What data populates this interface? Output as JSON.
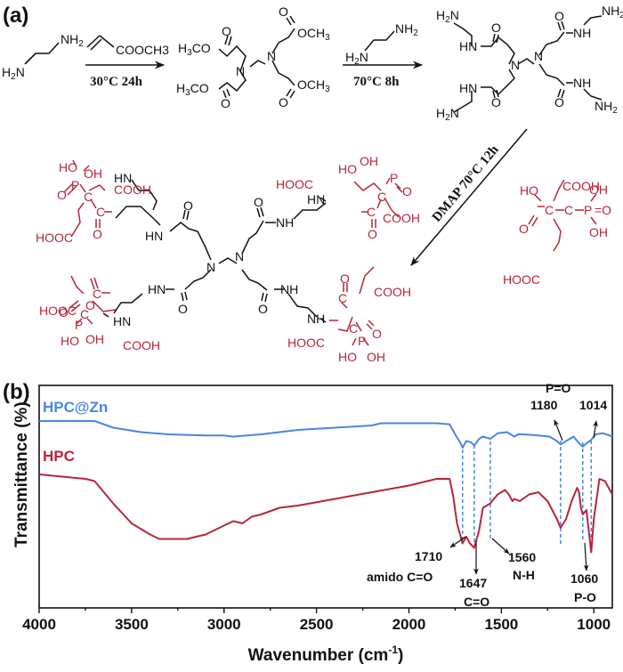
{
  "panels": {
    "a": {
      "label": "(a)"
    },
    "b": {
      "label": "(b)"
    }
  },
  "colors": {
    "black": "#111111",
    "red": "#b5263a",
    "blue": "#4a86e0",
    "dash": "#4a86e0"
  },
  "scheme": {
    "reactant_1": {
      "name": "ethylenediamine",
      "nh2_top": "NH2",
      "h2n_bottom": "H2N"
    },
    "reagent_1": {
      "label": "COOCH3",
      "conditions": "30°C 24h"
    },
    "intermediate_1": {
      "groups": [
        "H3CO",
        "OCH3",
        "H3CO",
        "OCH3"
      ],
      "core": "N",
      "carbonyl": "O"
    },
    "reagent_2": {
      "nh2": "NH2",
      "h2n": "H2N",
      "conditions": "70°C 8h"
    },
    "intermediate_2": {
      "amines": [
        "H2N",
        "NH2",
        "H2N",
        "NH2"
      ],
      "amides": [
        "HN",
        "NH",
        "HN",
        "NH"
      ],
      "core": "N",
      "carbonyl": "O"
    },
    "reagent_3": {
      "conditions": "DMAP 70°C 12h",
      "groups": {
        "cooh": "COOH",
        "ho": "HO",
        "oh": "OH",
        "c": "C",
        "p": "P",
        "o": "O",
        "hooc": "HOOC"
      }
    },
    "product": {
      "arm_labels": {
        "hooc": "HOOC",
        "cooh": "COOH",
        "ho": "HO",
        "oh": "OH",
        "p": "P",
        "c": "C",
        "o": "O",
        "hn": "HN",
        "nh": "NH",
        "n": "N"
      }
    }
  },
  "chart_data": {
    "type": "line",
    "title": "",
    "xlabel": "Wavenumber (cm-1)",
    "xlabel_main": "Wavenumber (cm",
    "xlabel_sup": "-1",
    "xlabel_close": ")",
    "ylabel": "Transmittance (%)",
    "xlim": [
      4000,
      900
    ],
    "x_reversed": true,
    "xticks": [
      4000,
      3500,
      3000,
      2500,
      2000,
      1500,
      1000
    ],
    "xtick_labels": [
      "4000",
      "3500",
      "3000",
      "2500",
      "2000",
      "1500",
      "1000"
    ],
    "yticks_shown": false,
    "grid": false,
    "series": [
      {
        "name": "HPC@Zn",
        "color": "#4a86e0",
        "x": [
          4000,
          3700,
          3600,
          3450,
          3300,
          3100,
          3000,
          2950,
          2800,
          2600,
          2400,
          2200,
          2150,
          2000,
          1850,
          1780,
          1750,
          1720,
          1710,
          1690,
          1665,
          1647,
          1620,
          1600,
          1560,
          1520,
          1470,
          1430,
          1410,
          1380,
          1300,
          1240,
          1200,
          1180,
          1150,
          1110,
          1080,
          1060,
          1040,
          1014,
          990,
          950,
          900
        ],
        "y": [
          84,
          84,
          81,
          79,
          78,
          77.5,
          77.5,
          77,
          78,
          80,
          81,
          82,
          83,
          83,
          83,
          82.5,
          78,
          74,
          72,
          75,
          74.5,
          73,
          76,
          77,
          76,
          78.5,
          79,
          77,
          78,
          78,
          77.5,
          77,
          75,
          73.5,
          75,
          77,
          74,
          72.5,
          74,
          75.5,
          78,
          78.5,
          77
        ]
      },
      {
        "name": "HPC",
        "color": "#b5263a",
        "x": [
          4000,
          3750,
          3700,
          3600,
          3500,
          3400,
          3350,
          3300,
          3200,
          3100,
          3000,
          2950,
          2900,
          2850,
          2800,
          2700,
          2600,
          2400,
          2200,
          2000,
          1850,
          1780,
          1760,
          1740,
          1710,
          1690,
          1670,
          1647,
          1620,
          1600,
          1560,
          1520,
          1480,
          1460,
          1440,
          1430,
          1400,
          1350,
          1300,
          1250,
          1200,
          1180,
          1150,
          1120,
          1090,
          1080,
          1070,
          1060,
          1040,
          1014,
          1000,
          970,
          940,
          900
        ],
        "y": [
          60,
          58,
          57,
          47,
          38,
          33,
          31,
          31,
          31,
          33,
          37,
          39,
          38,
          41,
          42,
          45,
          46,
          49,
          52,
          55,
          58,
          58,
          50,
          38,
          29,
          32,
          29,
          27,
          35,
          45,
          47,
          51,
          53,
          51,
          48,
          49,
          48,
          51,
          52,
          48,
          40,
          36,
          40,
          48,
          54,
          52,
          45,
          42,
          44,
          25,
          40,
          58,
          57,
          51
        ]
      }
    ],
    "annotations": [
      {
        "text": "1710",
        "sub": "amido C=O",
        "x": 1710,
        "series": "HPC",
        "dashed": true
      },
      {
        "text": "1647",
        "sub": "C=O",
        "x": 1647,
        "series": "HPC",
        "dashed": true
      },
      {
        "text": "1560",
        "sub": "N-H",
        "x": 1560,
        "series": "HPC",
        "dashed": true
      },
      {
        "text": "1180",
        "sup": "P=O",
        "x": 1180,
        "series": "HPC@Zn",
        "dashed": true
      },
      {
        "text": "1060",
        "sub": "P-O",
        "x": 1060,
        "series": "HPC",
        "dashed": true
      },
      {
        "text": "1014",
        "x": 1014,
        "series": "HPC@Zn",
        "dashed": true
      }
    ],
    "legend": {
      "position": "inline-left",
      "entries": [
        "HPC@Zn",
        "HPC"
      ]
    }
  }
}
